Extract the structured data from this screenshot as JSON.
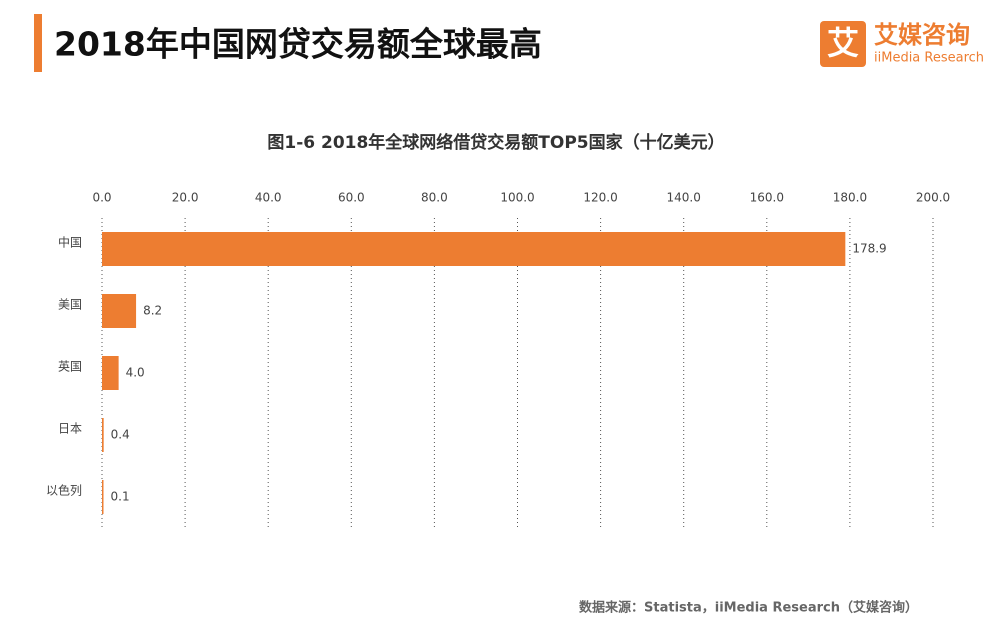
{
  "header": {
    "title": "2018年中国网贷交易额全球最高"
  },
  "logo": {
    "icon": "艾",
    "name": "艾媒咨询",
    "sub": "iiMedia Research"
  },
  "chart_data": {
    "type": "bar",
    "orientation": "horizontal",
    "title": "图1-6 2018年全球网络借贷交易额TOP5国家（十亿美元）",
    "categories": [
      "中国",
      "美国",
      "英国",
      "日本",
      "以色列"
    ],
    "values": [
      178.9,
      8.2,
      4.0,
      0.4,
      0.1
    ],
    "value_labels": [
      "178.9",
      "8.2",
      "4.0",
      "0.4",
      "0.1"
    ],
    "color": "#ed7d31",
    "xlim": [
      0,
      200
    ],
    "xticks": [
      {
        "value": 0,
        "label": "0.0"
      },
      {
        "value": 20,
        "label": "20.0"
      },
      {
        "value": 40,
        "label": "40.0"
      },
      {
        "value": 60,
        "label": "60.0"
      },
      {
        "value": 80,
        "label": "80.0"
      },
      {
        "value": 100,
        "label": "100.0"
      },
      {
        "value": 120,
        "label": "120.0"
      },
      {
        "value": 140,
        "label": "140.0"
      },
      {
        "value": 160,
        "label": "160.0"
      },
      {
        "value": 180,
        "label": "180.0"
      },
      {
        "value": 200,
        "label": "200.0"
      }
    ],
    "grid": true
  },
  "source": "数据来源：Statista，iiMedia Research（艾媒咨询）"
}
